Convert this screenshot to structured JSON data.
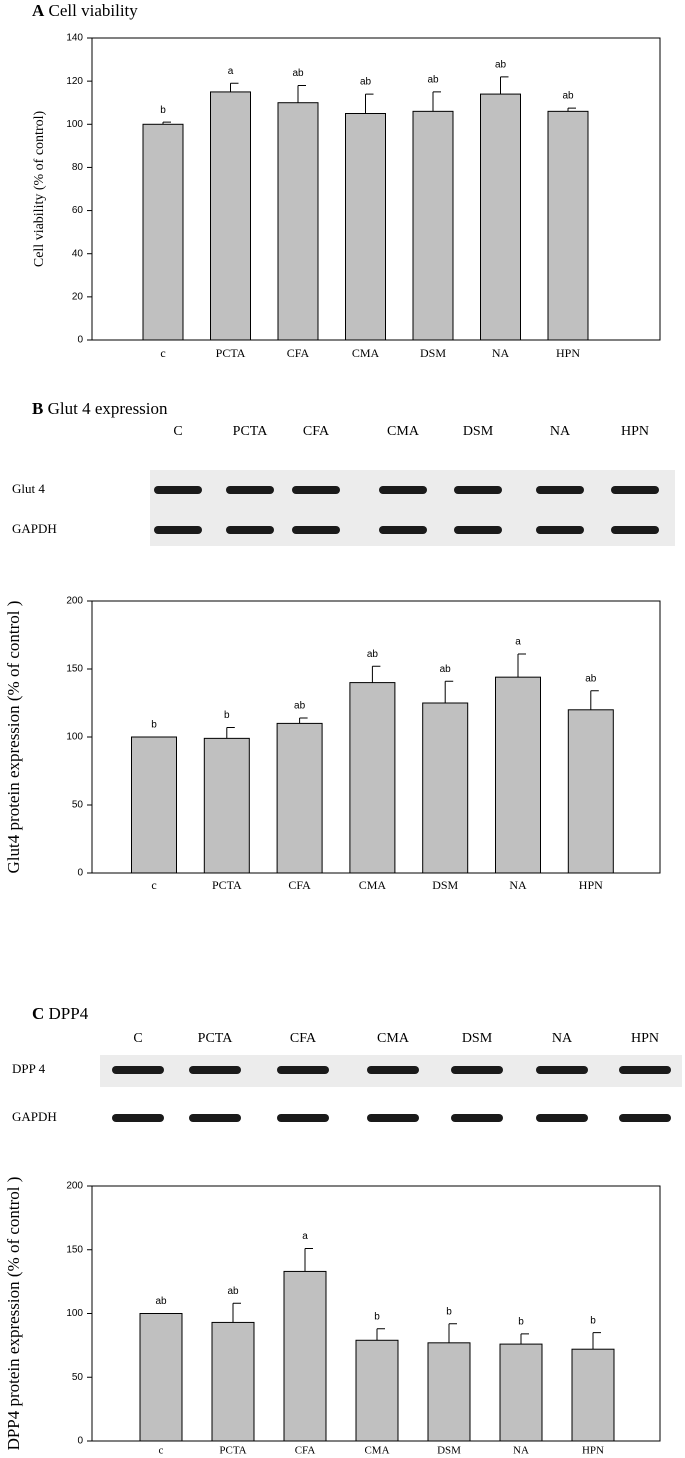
{
  "chart_data": [
    {
      "type": "bar",
      "panel": "A",
      "title": "Cell viability",
      "ylabel": "Cell viability (% of control)",
      "categories": [
        "c",
        "PCTA",
        "CFA",
        "CMA",
        "DSM",
        "NA",
        "HPN"
      ],
      "values": [
        100,
        115,
        110,
        105,
        106,
        114,
        106
      ],
      "errors": [
        1,
        4,
        8,
        9,
        9,
        8,
        1.5
      ],
      "annotations": [
        "b",
        "a",
        "ab",
        "ab",
        "ab",
        "ab",
        "ab"
      ],
      "color": "#c0c0c0",
      "ylim": [
        0,
        140
      ],
      "yticks": [
        0,
        20,
        40,
        60,
        80,
        100,
        120,
        140
      ],
      "grid": false
    },
    {
      "type": "bar",
      "panel": "B",
      "title": "Glut 4 expression",
      "ylabel": "Glut4 protein expression (% of control )",
      "blot": {
        "lanes": [
          "C",
          "PCTA",
          "CFA",
          "CMA",
          "DSM",
          "NA",
          "HPN"
        ],
        "rows": [
          "Glut 4",
          "GAPDH"
        ]
      },
      "categories": [
        "c",
        "PCTA",
        "CFA",
        "CMA",
        "DSM",
        "NA",
        "HPN"
      ],
      "values": [
        100,
        99,
        110,
        140,
        125,
        144,
        120
      ],
      "errors": [
        0,
        8,
        4,
        12,
        16,
        17,
        14
      ],
      "annotations": [
        "b",
        "b",
        "ab",
        "ab",
        "ab",
        "a",
        "ab"
      ],
      "color": "#c0c0c0",
      "ylim": [
        0,
        200
      ],
      "yticks": [
        0,
        50,
        100,
        150,
        200
      ],
      "grid": false
    },
    {
      "type": "bar",
      "panel": "C",
      "title": "DPP4",
      "ylabel": "DPP4 protein expression (% of control )",
      "blot": {
        "lanes": [
          "C",
          "PCTA",
          "CFA",
          "CMA",
          "DSM",
          "NA",
          "HPN"
        ],
        "rows": [
          "DPP 4",
          "GAPDH"
        ]
      },
      "categories": [
        "c",
        "PCTA",
        "CFA",
        "CMA",
        "DSM",
        "NA",
        "HPN"
      ],
      "values": [
        100,
        93,
        133,
        79,
        77,
        76,
        72
      ],
      "errors": [
        0,
        15,
        18,
        9,
        15,
        8,
        13
      ],
      "annotations": [
        "ab",
        "ab",
        "a",
        "b",
        "b",
        "b",
        "b"
      ],
      "color": "#c0c0c0",
      "ylim": [
        0,
        200
      ],
      "yticks": [
        0,
        50,
        100,
        150,
        200
      ],
      "grid": false
    }
  ]
}
